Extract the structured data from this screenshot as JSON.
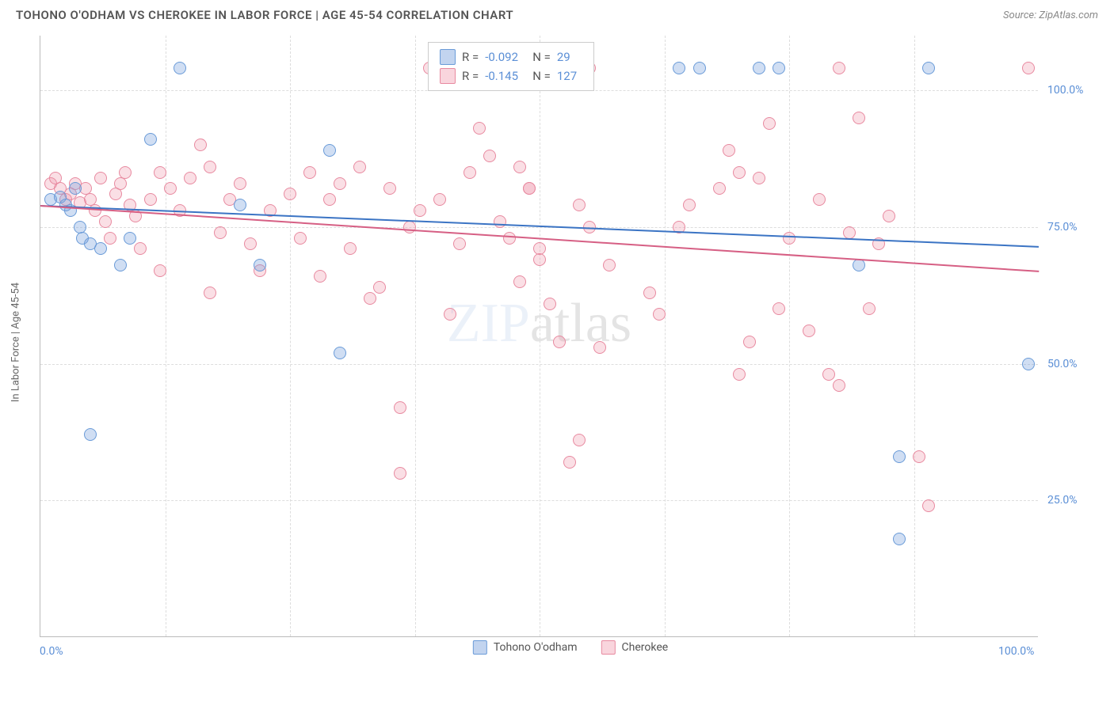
{
  "header": {
    "title": "TOHONO O'ODHAM VS CHEROKEE IN LABOR FORCE | AGE 45-54 CORRELATION CHART",
    "source": "Source: ZipAtlas.com"
  },
  "chart": {
    "type": "scatter",
    "y_axis_label": "In Labor Force | Age 45-54",
    "xlim": [
      0,
      100
    ],
    "ylim": [
      0,
      110
    ],
    "y_ticks": [
      25,
      50,
      75,
      100
    ],
    "y_tick_labels": [
      "25.0%",
      "50.0%",
      "75.0%",
      "100.0%"
    ],
    "x_ticks": [
      0,
      100
    ],
    "x_tick_labels": [
      "0.0%",
      "100.0%"
    ],
    "x_minor_ticks": [
      12.5,
      25,
      37.5,
      50,
      62.5,
      75,
      87.5
    ],
    "grid_color": "#dddddd",
    "background_color": "#ffffff",
    "watermark": {
      "part1": "ZIP",
      "part2": "atlas"
    },
    "series": [
      {
        "name": "Tohono O'odham",
        "fill_color": "rgba(120,160,220,0.35)",
        "stroke_color": "#6a9bd8",
        "marker_radius": 8,
        "trend": {
          "y_start": 79,
          "y_end": 71.5,
          "color": "#3b74c4",
          "width": 2
        },
        "stats": {
          "R": "-0.092",
          "N": "29"
        },
        "points": [
          [
            1,
            80
          ],
          [
            2,
            80.5
          ],
          [
            2.5,
            79
          ],
          [
            3,
            78
          ],
          [
            3.5,
            82
          ],
          [
            4,
            75
          ],
          [
            4.2,
            73
          ],
          [
            5,
            72
          ],
          [
            6,
            71
          ],
          [
            8,
            68
          ],
          [
            9,
            73
          ],
          [
            11,
            91
          ],
          [
            14,
            104
          ],
          [
            20,
            79
          ],
          [
            22,
            68
          ],
          [
            29,
            89
          ],
          [
            30,
            52
          ],
          [
            5,
            37
          ],
          [
            64,
            104
          ],
          [
            66,
            104
          ],
          [
            72,
            104
          ],
          [
            74,
            104
          ],
          [
            89,
            104
          ],
          [
            82,
            68
          ],
          [
            86,
            33
          ],
          [
            86,
            18
          ],
          [
            99,
            50
          ]
        ]
      },
      {
        "name": "Cherokee",
        "fill_color": "rgba(240,150,170,0.30)",
        "stroke_color": "#e88aa0",
        "marker_radius": 8,
        "trend": {
          "y_start": 79,
          "y_end": 67,
          "color": "#d65f84",
          "width": 2
        },
        "stats": {
          "R": "-0.145",
          "N": "127"
        },
        "points": [
          [
            1,
            83
          ],
          [
            1.5,
            84
          ],
          [
            2,
            82
          ],
          [
            2.5,
            80
          ],
          [
            3,
            81
          ],
          [
            3.5,
            83
          ],
          [
            4,
            79.5
          ],
          [
            4.5,
            82
          ],
          [
            5,
            80
          ],
          [
            5.5,
            78
          ],
          [
            6,
            84
          ],
          [
            6.5,
            76
          ],
          [
            7,
            73
          ],
          [
            7.5,
            81
          ],
          [
            8,
            83
          ],
          [
            8.5,
            85
          ],
          [
            9,
            79
          ],
          [
            9.5,
            77
          ],
          [
            10,
            71
          ],
          [
            11,
            80
          ],
          [
            12,
            85
          ],
          [
            13,
            82
          ],
          [
            14,
            78
          ],
          [
            15,
            84
          ],
          [
            16,
            90
          ],
          [
            17,
            86
          ],
          [
            18,
            74
          ],
          [
            19,
            80
          ],
          [
            20,
            83
          ],
          [
            17,
            63
          ],
          [
            12,
            67
          ],
          [
            21,
            72
          ],
          [
            22,
            67
          ],
          [
            23,
            78
          ],
          [
            25,
            81
          ],
          [
            26,
            73
          ],
          [
            27,
            85
          ],
          [
            28,
            66
          ],
          [
            29,
            80
          ],
          [
            30,
            83
          ],
          [
            31,
            71
          ],
          [
            32,
            86
          ],
          [
            33,
            62
          ],
          [
            34,
            64
          ],
          [
            35,
            82
          ],
          [
            36,
            42
          ],
          [
            36,
            30
          ],
          [
            37,
            75
          ],
          [
            38,
            78
          ],
          [
            39,
            104
          ],
          [
            40,
            80
          ],
          [
            41,
            59
          ],
          [
            42,
            72
          ],
          [
            43,
            85
          ],
          [
            44,
            93
          ],
          [
            45,
            88
          ],
          [
            46,
            76
          ],
          [
            47,
            73
          ],
          [
            48,
            65
          ],
          [
            49,
            82
          ],
          [
            50,
            71
          ],
          [
            51,
            61
          ],
          [
            52,
            54
          ],
          [
            53,
            32
          ],
          [
            54,
            79
          ],
          [
            55,
            75
          ],
          [
            56,
            53
          ],
          [
            57,
            68
          ],
          [
            54,
            36
          ],
          [
            48,
            86
          ],
          [
            49,
            82
          ],
          [
            50,
            69
          ],
          [
            61,
            63
          ],
          [
            62,
            59
          ],
          [
            64,
            75
          ],
          [
            65,
            79
          ],
          [
            68,
            82
          ],
          [
            69,
            89
          ],
          [
            70,
            85
          ],
          [
            70,
            48
          ],
          [
            71,
            54
          ],
          [
            72,
            84
          ],
          [
            74,
            60
          ],
          [
            75,
            73
          ],
          [
            77,
            56
          ],
          [
            78,
            80
          ],
          [
            79,
            48
          ],
          [
            80,
            46
          ],
          [
            81,
            74
          ],
          [
            80,
            104
          ],
          [
            82,
            95
          ],
          [
            83,
            60
          ],
          [
            84,
            72
          ],
          [
            85,
            77
          ],
          [
            88,
            33
          ],
          [
            99,
            104
          ],
          [
            89,
            24
          ],
          [
            55,
            104
          ],
          [
            73,
            94
          ]
        ]
      }
    ],
    "legend_box": {
      "swatch1_fill": "rgba(120,160,220,0.45)",
      "swatch1_stroke": "#6a9bd8",
      "swatch2_fill": "rgba(240,150,170,0.40)",
      "swatch2_stroke": "#e88aa0",
      "r_label": "R =",
      "n_label": "N ="
    },
    "bottom_legend": {
      "item1": "Tohono O'odham",
      "item2": "Cherokee"
    }
  }
}
